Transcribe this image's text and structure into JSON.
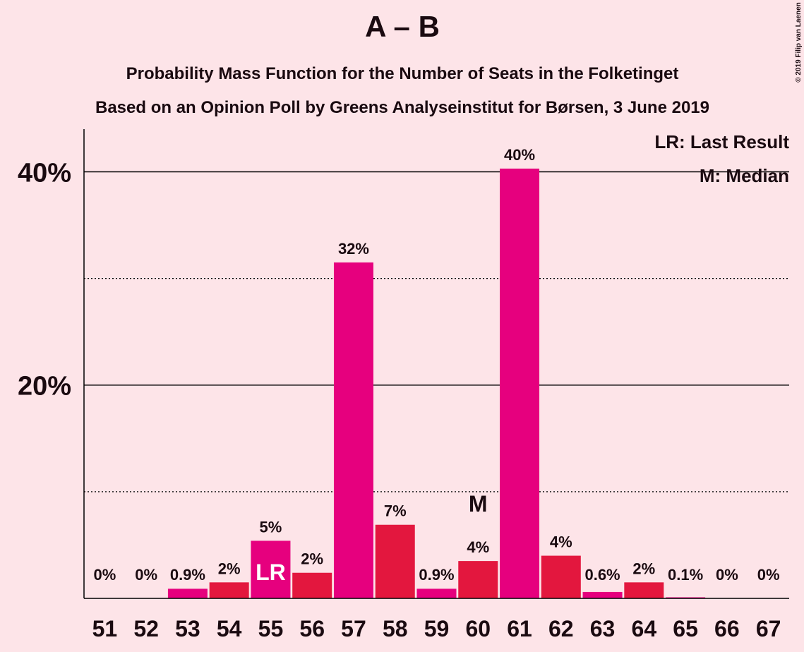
{
  "chart_data": {
    "type": "bar",
    "title": "A – B",
    "subtitle": "Probability Mass Function for the Number of Seats in the Folketinget",
    "subtitle2": "Based on an Opinion Poll by Greens Analyseinstitut for Børsen, 3 June 2019",
    "credit": "© 2019 Filip van Laenen",
    "categories": [
      "51",
      "52",
      "53",
      "54",
      "55",
      "56",
      "57",
      "58",
      "59",
      "60",
      "61",
      "62",
      "63",
      "64",
      "65",
      "66",
      "67"
    ],
    "values": [
      0,
      0,
      0.9,
      1.5,
      5.4,
      2.4,
      31.5,
      6.9,
      0.9,
      3.5,
      40.3,
      4.0,
      0.6,
      1.5,
      0.1,
      0,
      0
    ],
    "value_labels": [
      "0%",
      "0%",
      "0.9%",
      "2%",
      "5%",
      "2%",
      "32%",
      "7%",
      "0.9%",
      "4%",
      "40%",
      "4%",
      "0.6%",
      "2%",
      "0.1%",
      "0%",
      "0%"
    ],
    "colors": [
      "#e6007e",
      "#e3173e",
      "#e6007e",
      "#e3173e",
      "#e6007e",
      "#e3173e",
      "#e6007e",
      "#e3173e",
      "#e6007e",
      "#e3173e",
      "#e6007e",
      "#e3173e",
      "#e6007e",
      "#e3173e",
      "#e6007e",
      "#e3173e",
      "#e6007e"
    ],
    "ylim": [
      0,
      44
    ],
    "yticks": [
      {
        "value": 20,
        "label": "20%"
      },
      {
        "value": 40,
        "label": "40%"
      }
    ],
    "minor_grid": [
      10,
      30
    ],
    "grid": true,
    "annotations": [
      {
        "index": 4,
        "text": "LR"
      },
      {
        "index": 9,
        "text": "M"
      }
    ],
    "legend": [
      "LR: Last Result",
      "M: Median"
    ]
  }
}
